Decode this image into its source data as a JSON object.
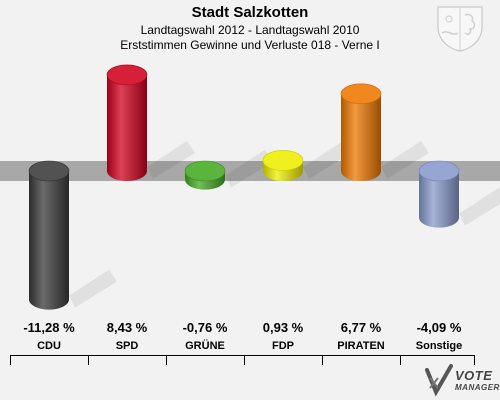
{
  "header": {
    "title": "Stadt Salzkotten",
    "subtitle1": "Landtagswahl 2012 - Landtagswahl 2010",
    "subtitle2": "Erststimmen Gewinne und Verluste 018 - Verne I"
  },
  "branding": {
    "line1": "VOTE",
    "line2": "MANAGER",
    "crest_icon": "coat-of-arms-icon"
  },
  "chart_data": {
    "type": "bar",
    "title": "Stadt Salzkotten",
    "categories": [
      "CDU",
      "SPD",
      "GRÜNE",
      "FDP",
      "PIRATEN",
      "Sonstige"
    ],
    "values": [
      -11.28,
      8.43,
      -0.76,
      0.93,
      6.77,
      -4.09
    ],
    "value_labels": [
      "-11,28 %",
      "8,43 %",
      "-0,76 %",
      "0,93 %",
      "6,77 %",
      "-4,09 %"
    ],
    "colors": [
      "#3a3a3a",
      "#d0001e",
      "#44aa22",
      "#eeee00",
      "#ee7700",
      "#8899cc"
    ],
    "xlabel": "",
    "ylabel": "",
    "grid": false,
    "legend": "none"
  }
}
